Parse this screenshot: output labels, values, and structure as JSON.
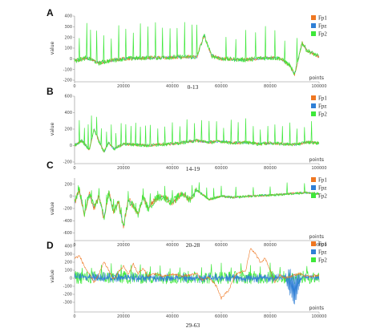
{
  "chart_data": [
    {
      "panel_label": "A",
      "caption": "0-13",
      "type": "line",
      "xlabel": "points",
      "ylabel": "value",
      "xlim": [
        0,
        100000
      ],
      "ylim": [
        -200,
        400
      ],
      "xticks": [
        0,
        20000,
        40000,
        60000,
        80000,
        100000
      ],
      "yticks": [
        -200,
        -100,
        0,
        100,
        200,
        300,
        400
      ],
      "legend_position": "top-right",
      "series": [
        {
          "name": "Fp1",
          "color": "#ef7722"
        },
        {
          "name": "Fpz",
          "color": "#2f7fd6"
        },
        {
          "name": "Fp2",
          "color": "#3ee83a"
        }
      ],
      "baseline": [
        [
          0,
          -20
        ],
        [
          5000,
          10
        ],
        [
          10000,
          -40
        ],
        [
          15000,
          -15
        ],
        [
          20000,
          0
        ],
        [
          25000,
          5
        ],
        [
          30000,
          10
        ],
        [
          35000,
          12
        ],
        [
          40000,
          15
        ],
        [
          45000,
          20
        ],
        [
          50000,
          15
        ],
        [
          53000,
          220
        ],
        [
          56000,
          30
        ],
        [
          60000,
          0
        ],
        [
          65000,
          -5
        ],
        [
          70000,
          -10
        ],
        [
          75000,
          5
        ],
        [
          80000,
          10
        ],
        [
          84000,
          5
        ],
        [
          88000,
          -60
        ],
        [
          90000,
          -150
        ],
        [
          93000,
          150
        ],
        [
          95000,
          80
        ],
        [
          100000,
          20
        ]
      ],
      "spikes_x": [
        2000,
        5000,
        6500,
        9000,
        12000,
        15000,
        18000,
        21000,
        24000,
        27000,
        30000,
        33000,
        36000,
        39000,
        42000,
        45000,
        48000,
        50000,
        62000,
        66000,
        70000,
        74000,
        78000,
        82000,
        86000,
        91000
      ],
      "spike_peak": 330
    },
    {
      "panel_label": "B",
      "caption": "14-19",
      "type": "line",
      "xlabel": "points",
      "ylabel": "value",
      "xlim": [
        0,
        100000
      ],
      "ylim": [
        -200,
        600
      ],
      "xticks": [
        0,
        20000,
        40000,
        60000,
        80000,
        100000
      ],
      "yticks": [
        -200,
        0,
        200,
        400,
        600
      ],
      "legend_position": "top-right",
      "series": [
        {
          "name": "Fp1",
          "color": "#ef7722"
        },
        {
          "name": "Fpz",
          "color": "#2f7fd6"
        },
        {
          "name": "Fp2",
          "color": "#3ee83a"
        }
      ],
      "baseline": [
        [
          0,
          0
        ],
        [
          3000,
          60
        ],
        [
          6000,
          -50
        ],
        [
          8000,
          200
        ],
        [
          10000,
          50
        ],
        [
          12000,
          -80
        ],
        [
          14000,
          40
        ],
        [
          16000,
          -40
        ],
        [
          20000,
          20
        ],
        [
          25000,
          10
        ],
        [
          30000,
          0
        ],
        [
          35000,
          15
        ],
        [
          40000,
          20
        ],
        [
          45000,
          40
        ],
        [
          50000,
          60
        ],
        [
          55000,
          40
        ],
        [
          60000,
          50
        ],
        [
          65000,
          30
        ],
        [
          70000,
          40
        ],
        [
          75000,
          20
        ],
        [
          80000,
          30
        ],
        [
          85000,
          20
        ],
        [
          90000,
          10
        ],
        [
          95000,
          40
        ],
        [
          100000,
          30
        ]
      ],
      "spikes_x": [
        2000,
        4000,
        5500,
        7000,
        9000,
        11000,
        13000,
        15000,
        17000,
        19000,
        21000,
        23000,
        25000,
        27000,
        29000,
        31000,
        34000,
        37000,
        40000,
        43000,
        46000,
        49000,
        52000,
        55000,
        58000,
        61000,
        64000,
        67000,
        70000,
        73000,
        76000,
        79000,
        82000,
        85000,
        88000,
        91000,
        94000,
        97000
      ],
      "spike_peak": 300
    },
    {
      "panel_label": "C",
      "caption": "20-28",
      "type": "line",
      "xlabel": "points",
      "ylabel": "value",
      "xlim": [
        0,
        100000
      ],
      "ylim": [
        -700,
        300
      ],
      "xticks": [
        0,
        20000,
        40000,
        60000,
        80000,
        100000
      ],
      "yticks": [
        -600,
        -400,
        -200,
        0,
        200
      ],
      "legend_position": "top-right",
      "series": [
        {
          "name": "Fp1",
          "color": "#ef7722"
        },
        {
          "name": "Fpz",
          "color": "#2f7fd6"
        },
        {
          "name": "Fp2",
          "color": "#3ee83a"
        }
      ],
      "baseline": [
        [
          0,
          -100
        ],
        [
          2000,
          100
        ],
        [
          4000,
          -300
        ],
        [
          6000,
          50
        ],
        [
          8000,
          -200
        ],
        [
          10000,
          0
        ],
        [
          12000,
          -350
        ],
        [
          14000,
          50
        ],
        [
          16000,
          -250
        ],
        [
          18000,
          -100
        ],
        [
          20000,
          -500
        ],
        [
          22000,
          -50
        ],
        [
          24000,
          -150
        ],
        [
          26000,
          -300
        ],
        [
          28000,
          0
        ],
        [
          30000,
          -200
        ],
        [
          33000,
          -50
        ],
        [
          36000,
          0
        ],
        [
          40000,
          -100
        ],
        [
          44000,
          50
        ],
        [
          47000,
          -50
        ],
        [
          50000,
          100
        ],
        [
          55000,
          -50
        ],
        [
          60000,
          0
        ],
        [
          65000,
          -20
        ],
        [
          70000,
          0
        ],
        [
          75000,
          10
        ],
        [
          80000,
          20
        ],
        [
          85000,
          30
        ],
        [
          90000,
          50
        ],
        [
          95000,
          60
        ],
        [
          100000,
          40
        ]
      ],
      "spikes_x": [
        1500,
        4500,
        7000,
        10000,
        13000,
        16000,
        19000,
        22000,
        25000,
        28000,
        31000,
        34000,
        37000,
        40000,
        48000,
        51000,
        54000,
        57000,
        60000,
        66000,
        73000,
        80000,
        87000,
        94000
      ],
      "spike_peak": 200
    },
    {
      "panel_label": "D",
      "caption": "29-63",
      "type": "line",
      "xlabel": "points",
      "ylabel": "value",
      "xlim": [
        0,
        100000
      ],
      "ylim": [
        -400,
        450
      ],
      "xticks": [
        0,
        20000,
        40000,
        60000,
        80000,
        100000
      ],
      "yticks": [
        -300,
        -200,
        -100,
        0,
        100,
        200,
        300,
        400
      ],
      "legend_position": "top-right",
      "series": [
        {
          "name": "Fp1",
          "color": "#ef7722"
        },
        {
          "name": "Fpz",
          "color": "#2f7fd6"
        },
        {
          "name": "Fp2",
          "color": "#3ee83a"
        }
      ],
      "fp1_trace": [
        [
          0,
          250
        ],
        [
          2000,
          280
        ],
        [
          4000,
          150
        ],
        [
          6000,
          50
        ],
        [
          8000,
          -50
        ],
        [
          10000,
          50
        ],
        [
          12000,
          200
        ],
        [
          14000,
          100
        ],
        [
          16000,
          -20
        ],
        [
          18000,
          80
        ],
        [
          20000,
          150
        ],
        [
          22000,
          50
        ],
        [
          24000,
          180
        ],
        [
          26000,
          60
        ],
        [
          28000,
          120
        ],
        [
          30000,
          30
        ],
        [
          33000,
          60
        ],
        [
          36000,
          20
        ],
        [
          40000,
          50
        ],
        [
          44000,
          30
        ],
        [
          48000,
          40
        ],
        [
          50000,
          60
        ],
        [
          52000,
          -20
        ],
        [
          55000,
          10
        ],
        [
          58000,
          -100
        ],
        [
          60000,
          -250
        ],
        [
          63000,
          -150
        ],
        [
          66000,
          50
        ],
        [
          70000,
          100
        ],
        [
          72000,
          380
        ],
        [
          74000,
          300
        ],
        [
          76000,
          200
        ],
        [
          78000,
          250
        ],
        [
          80000,
          100
        ],
        [
          82000,
          -50
        ],
        [
          84000,
          50
        ],
        [
          86000,
          0
        ],
        [
          88000,
          20
        ],
        [
          90000,
          40
        ],
        [
          92000,
          60
        ],
        [
          95000,
          20
        ],
        [
          100000,
          40
        ]
      ],
      "fpz_band": [
        [
          0,
          30,
          80
        ],
        [
          10000,
          20,
          80
        ],
        [
          20000,
          10,
          70
        ],
        [
          30000,
          10,
          60
        ],
        [
          40000,
          20,
          60
        ],
        [
          50000,
          0,
          70
        ],
        [
          55000,
          20,
          60
        ],
        [
          60000,
          10,
          60
        ],
        [
          70000,
          5,
          50
        ],
        [
          80000,
          10,
          60
        ],
        [
          86000,
          30,
          60
        ],
        [
          88000,
          -150,
          150
        ],
        [
          90000,
          -300,
          60
        ],
        [
          93000,
          50,
          60
        ],
        [
          100000,
          10,
          50
        ]
      ],
      "spikes_x": [
        3000,
        7000,
        11000,
        15000,
        19000,
        23000,
        27000,
        31000,
        35000,
        39000,
        43000,
        52000,
        56000,
        60000,
        64000,
        68000,
        72000,
        76000,
        80000,
        84000,
        95000
      ],
      "spike_peak": 200
    }
  ]
}
